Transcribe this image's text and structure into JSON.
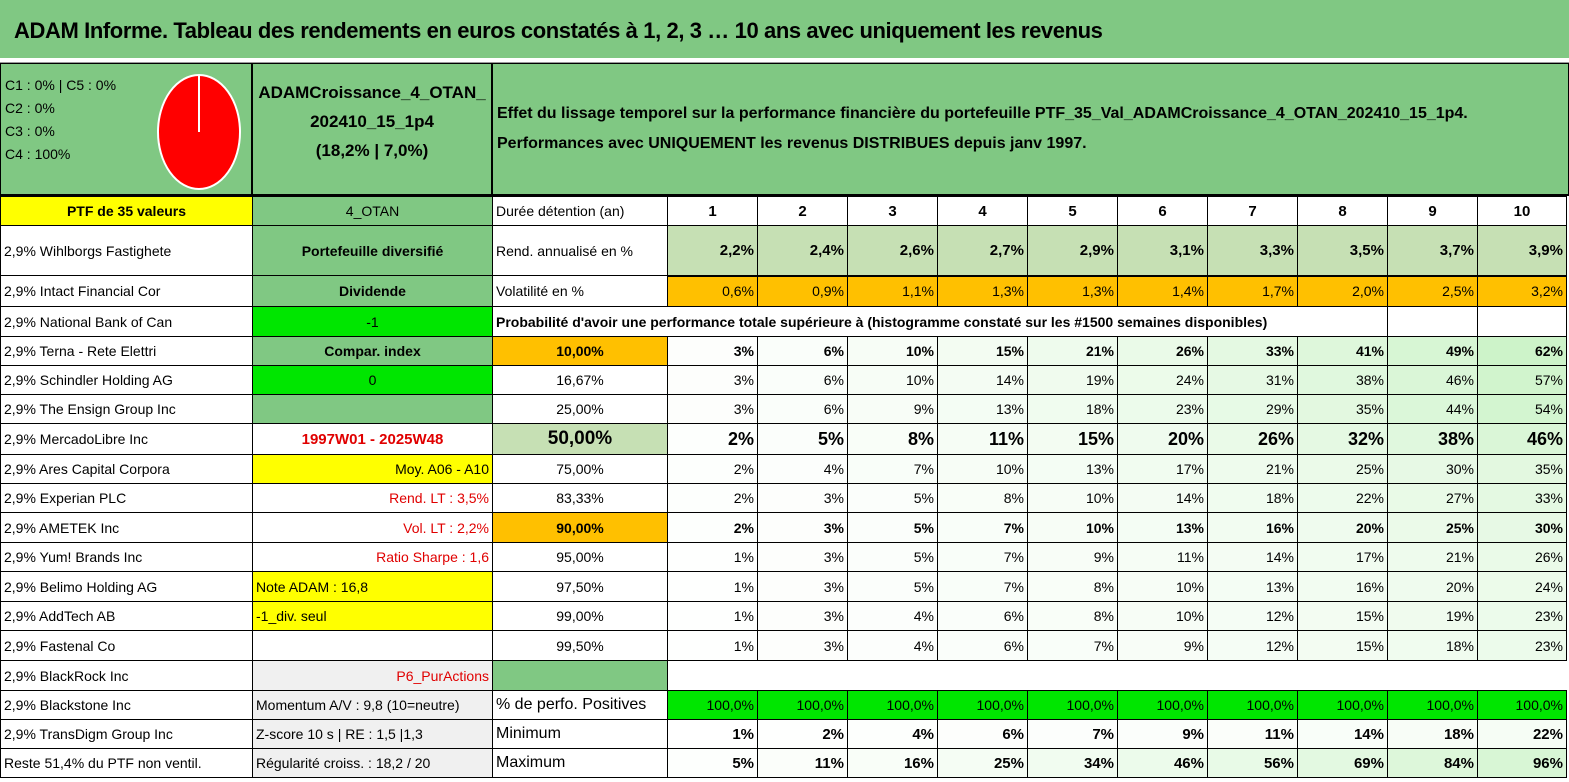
{
  "title": "ADAM Informe. Tableau des rendements en euros constatés à 1, 2, 3 … 10 ans avec uniquement les revenus",
  "allocation": {
    "lines": [
      "C1 : 0% | C5 : 0%",
      "C2 : 0%",
      "C3 : 0%",
      "C4 : 100%"
    ],
    "pie": {
      "C4": 100
    },
    "pie_color": "#ff0000"
  },
  "portfolio": {
    "line1": "ADAMCroissance_4_OTAN_",
    "line2": "202410_15_1p4",
    "stats": "(18,2% | 7,0%)"
  },
  "description": {
    "line1": "Effet du lissage temporel sur la performance financière du portefeuille PTF_35_Val_ADAMCroissance_4_OTAN_202410_15_1p4.",
    "line2": "Performances avec UNIQUEMENT les revenus DISTRIBUES depuis janv 1997."
  },
  "holdings": [
    "PTF de 35 valeurs",
    "2,9% Wihlborgs Fastighete",
    "2,9% Intact Financial Cor",
    "2,9% National Bank of Can",
    "2,9% Terna - Rete Elettri",
    "2,9% Schindler Holding AG",
    "2,9% The Ensign Group Inc",
    "2,9% MercadoLibre Inc",
    "2,9% Ares Capital Corpora",
    "2,9% Experian PLC",
    "2,9% AMETEK Inc",
    "2,9% Yum! Brands Inc",
    "2,9% Belimo Holding AG",
    "2,9% AddTech AB",
    "2,9% Fastenal Co",
    "2,9% BlackRock Inc",
    "2,9% Blackstone Inc",
    "2,9% TransDigm Group Inc",
    "Reste 51,4% du PTF non ventil."
  ],
  "info": [
    "4_OTAN",
    "Portefeuille diversifié",
    "Dividende",
    "-1",
    "Compar. index",
    "0",
    "",
    "1997W01 - 2025W48",
    "Moy. A06 - A10",
    "Rend. LT : 3,5%",
    "Vol. LT : 2,2%",
    "Ratio Sharpe : 1,6",
    "Note ADAM : 16,8",
    "-1_div. seul",
    "",
    "P6_PurActions",
    "Momentum A/V : 9,8 (10=neutre)",
    "Z-score 10 s | RE : 1,5 |1,3",
    "Régularité croiss. : 18,2 / 20"
  ],
  "table": {
    "duration_label": "Durée détention (an)",
    "years": [
      "1",
      "2",
      "3",
      "4",
      "5",
      "6",
      "7",
      "8",
      "9",
      "10"
    ],
    "rend_label": "Rend. annualisé en %",
    "rend": [
      "2,2%",
      "2,4%",
      "2,6%",
      "2,7%",
      "2,9%",
      "3,1%",
      "3,3%",
      "3,5%",
      "3,7%",
      "3,9%"
    ],
    "vol_label": "Volatilité en %",
    "vol": [
      "0,6%",
      "0,9%",
      "1,1%",
      "1,3%",
      "1,3%",
      "1,4%",
      "1,7%",
      "2,0%",
      "2,5%",
      "3,2%"
    ],
    "prob_title": "Probabilité d'avoir une performance totale supérieure à (histogramme constaté sur les #1500 semaines disponibles)",
    "thresholds": [
      "10,00%",
      "16,67%",
      "25,00%",
      "50,00%",
      "75,00%",
      "83,33%",
      "90,00%",
      "95,00%",
      "97,50%",
      "99,00%",
      "99,50%"
    ],
    "prob": [
      [
        "3%",
        "6%",
        "10%",
        "15%",
        "21%",
        "26%",
        "33%",
        "41%",
        "49%",
        "62%"
      ],
      [
        "3%",
        "6%",
        "10%",
        "14%",
        "19%",
        "24%",
        "31%",
        "38%",
        "46%",
        "57%"
      ],
      [
        "3%",
        "6%",
        "9%",
        "13%",
        "18%",
        "23%",
        "29%",
        "35%",
        "44%",
        "54%"
      ],
      [
        "2%",
        "5%",
        "8%",
        "11%",
        "15%",
        "20%",
        "26%",
        "32%",
        "38%",
        "46%"
      ],
      [
        "2%",
        "4%",
        "7%",
        "10%",
        "13%",
        "17%",
        "21%",
        "25%",
        "30%",
        "35%"
      ],
      [
        "2%",
        "3%",
        "5%",
        "8%",
        "10%",
        "14%",
        "18%",
        "22%",
        "27%",
        "33%"
      ],
      [
        "2%",
        "3%",
        "5%",
        "7%",
        "10%",
        "13%",
        "16%",
        "20%",
        "25%",
        "30%"
      ],
      [
        "1%",
        "3%",
        "5%",
        "7%",
        "9%",
        "11%",
        "14%",
        "17%",
        "21%",
        "26%"
      ],
      [
        "1%",
        "3%",
        "5%",
        "7%",
        "8%",
        "10%",
        "13%",
        "16%",
        "20%",
        "24%"
      ],
      [
        "1%",
        "3%",
        "4%",
        "6%",
        "8%",
        "10%",
        "12%",
        "15%",
        "19%",
        "23%"
      ],
      [
        "1%",
        "3%",
        "4%",
        "6%",
        "7%",
        "9%",
        "12%",
        "15%",
        "18%",
        "23%"
      ]
    ],
    "pos_label": "% de perfo. Positives",
    "pos": [
      "100,0%",
      "100,0%",
      "100,0%",
      "100,0%",
      "100,0%",
      "100,0%",
      "100,0%",
      "100,0%",
      "100,0%",
      "100,0%"
    ],
    "min_label": "Minimum",
    "min": [
      "1%",
      "2%",
      "4%",
      "6%",
      "7%",
      "9%",
      "11%",
      "14%",
      "18%",
      "22%"
    ],
    "max_label": "Maximum",
    "max": [
      "5%",
      "11%",
      "16%",
      "25%",
      "34%",
      "46%",
      "56%",
      "69%",
      "84%",
      "96%"
    ]
  },
  "colors": {
    "header_green": "#80c883",
    "bright_green": "#00e600",
    "orange": "#ffc000",
    "yellow": "#ffff00",
    "red_text": "#e00000"
  }
}
